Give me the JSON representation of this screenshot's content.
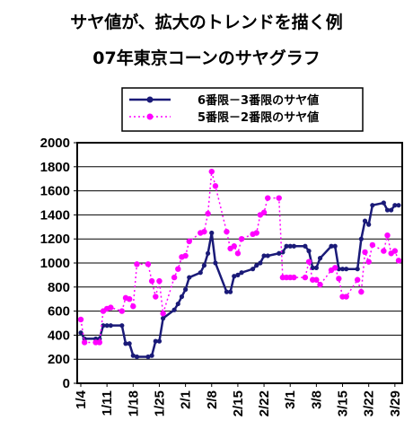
{
  "title_line1": "サヤ値が、拡大のトレンドを描く例",
  "title_line2": "07年東京コーンのサヤグラフ",
  "chart_data": {
    "type": "line",
    "ylim": [
      0,
      2000
    ],
    "yticks": [
      0,
      200,
      400,
      600,
      800,
      1000,
      1200,
      1400,
      1600,
      1800,
      2000
    ],
    "x_range": [
      "1/4",
      "3/30"
    ],
    "x_tick_labels": [
      "1/4",
      "1/11",
      "1/18",
      "1/25",
      "2/1",
      "2/8",
      "2/15",
      "2/22",
      "3/1",
      "3/8",
      "3/15",
      "3/22",
      "3/29"
    ],
    "grid": true,
    "legend_position": "top",
    "series": [
      {
        "name": "6番限－3番限のサヤ値",
        "color": "#1a1a78",
        "line_style": "solid",
        "x": [
          "1/4",
          "1/5",
          "1/8",
          "1/9",
          "1/10",
          "1/11",
          "1/12",
          "1/15",
          "1/16",
          "1/17",
          "1/18",
          "1/19",
          "1/22",
          "1/23",
          "1/24",
          "1/25",
          "1/26",
          "1/29",
          "1/30",
          "1/31",
          "2/1",
          "2/2",
          "2/5",
          "2/6",
          "2/7",
          "2/8",
          "2/9",
          "2/12",
          "2/13",
          "2/14",
          "2/15",
          "2/16",
          "2/19",
          "2/20",
          "2/21",
          "2/22",
          "2/23",
          "2/26",
          "2/27",
          "2/28",
          "3/1",
          "3/2",
          "3/5",
          "3/6",
          "3/7",
          "3/8",
          "3/9",
          "3/12",
          "3/13",
          "3/14",
          "3/15",
          "3/16",
          "3/19",
          "3/20",
          "3/21",
          "3/22",
          "3/23",
          "3/26",
          "3/27",
          "3/28",
          "3/29",
          "3/30"
        ],
        "values": [
          420,
          370,
          370,
          370,
          480,
          480,
          480,
          480,
          330,
          330,
          230,
          220,
          220,
          230,
          350,
          350,
          540,
          610,
          660,
          720,
          780,
          880,
          920,
          980,
          1080,
          1250,
          1000,
          760,
          760,
          890,
          900,
          920,
          950,
          980,
          1000,
          1060,
          1060,
          1080,
          1090,
          1140,
          1140,
          1140,
          1140,
          1100,
          960,
          960,
          1040,
          1140,
          1140,
          950,
          950,
          950,
          950,
          1200,
          1350,
          1320,
          1480,
          1500,
          1440,
          1440,
          1480,
          1480
        ]
      },
      {
        "name": "5番限－2番限のサヤ値",
        "color": "#ff00ff",
        "line_style": "dotted",
        "x": [
          "1/4",
          "1/5",
          "1/8",
          "1/9",
          "1/10",
          "1/11",
          "1/12",
          "1/15",
          "1/16",
          "1/17",
          "1/18",
          "1/19",
          "1/22",
          "1/23",
          "1/24",
          "1/25",
          "1/26",
          "1/29",
          "1/30",
          "1/31",
          "2/1",
          "2/2",
          "2/5",
          "2/6",
          "2/7",
          "2/8",
          "2/9",
          "2/12",
          "2/13",
          "2/14",
          "2/15",
          "2/16",
          "2/19",
          "2/20",
          "2/21",
          "2/22",
          "2/23",
          "2/26",
          "2/27",
          "2/28",
          "3/1",
          "3/2",
          "3/5",
          "3/6",
          "3/7",
          "3/8",
          "3/9",
          "3/12",
          "3/13",
          "3/14",
          "3/15",
          "3/16",
          "3/19",
          "3/20",
          "3/21",
          "3/22",
          "3/23",
          "3/26",
          "3/27",
          "3/28",
          "3/29",
          "3/30"
        ],
        "values": [
          530,
          340,
          340,
          340,
          600,
          620,
          630,
          600,
          710,
          700,
          640,
          990,
          990,
          850,
          720,
          850,
          580,
          880,
          950,
          1050,
          1060,
          1180,
          1250,
          1260,
          1410,
          1760,
          1640,
          1260,
          1120,
          1140,
          1080,
          1200,
          1240,
          1250,
          1400,
          1420,
          1540,
          1540,
          880,
          880,
          880,
          880,
          880,
          1010,
          860,
          860,
          820,
          940,
          960,
          870,
          720,
          720,
          860,
          760,
          1090,
          1010,
          1150,
          1100,
          1230,
          1080,
          1100,
          1020
        ]
      }
    ]
  }
}
